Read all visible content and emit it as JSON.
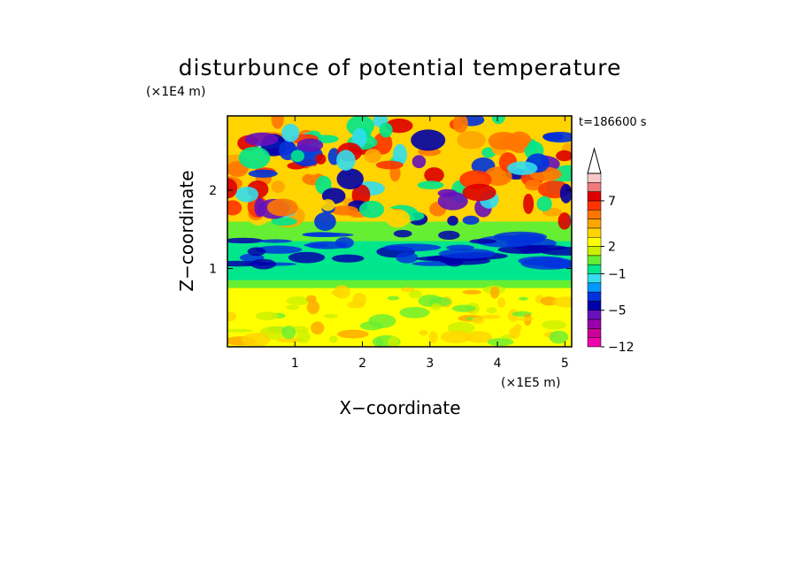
{
  "chart_data": {
    "type": "heatmap",
    "title": "disturbunce of potential temperature",
    "xlabel": "X−coordinate",
    "ylabel": "Z−coordinate",
    "x_unit": "(×1E5 m)",
    "y_unit": "(×1E4 m)",
    "time_label": "t=186600 s",
    "xlim": [
      0,
      5.1
    ],
    "ylim": [
      0,
      2.95
    ],
    "x_ticks": [
      1,
      2,
      3,
      4,
      5
    ],
    "x_tick_labels": [
      "1",
      "2",
      "3",
      "4",
      "5"
    ],
    "y_ticks": [
      1,
      2
    ],
    "y_tick_labels": [
      "1",
      "2"
    ],
    "colorbar": {
      "levels": [
        -12,
        -10,
        -8,
        -6,
        -5,
        -4,
        -3,
        -2,
        -1,
        0,
        1,
        2,
        3,
        4,
        5,
        6,
        7,
        8,
        9
      ],
      "tick_values": [
        -12,
        -5,
        -1,
        2,
        7
      ],
      "tick_labels": [
        "−12",
        "−5",
        "−1",
        "2",
        "7"
      ],
      "colors": [
        "#ee00aa",
        "#cc0099",
        "#9900aa",
        "#6611bb",
        "#0000aa",
        "#0033dd",
        "#0099ff",
        "#33ddee",
        "#00e68c",
        "#66ee33",
        "#ccf000",
        "#ffff00",
        "#ffd400",
        "#ffa500",
        "#ff7700",
        "#ff3300",
        "#dd0000",
        "#f07a7a",
        "#f8c8c8"
      ],
      "extend": "max"
    },
    "regions": [
      {
        "z_range": [
          0,
          0.25
        ],
        "description_level": 2
      },
      {
        "z_range": [
          0.25,
          0.75
        ],
        "description_level": 2
      },
      {
        "z_range": [
          0.75,
          0.85
        ],
        "description_level": 0
      },
      {
        "z_range": [
          0.85,
          1.35
        ],
        "description_level": -1
      },
      {
        "z_range": [
          1.35,
          1.6
        ],
        "description_level": 0
      },
      {
        "z_range": [
          1.6,
          2.95
        ],
        "description_level": 3
      }
    ]
  }
}
